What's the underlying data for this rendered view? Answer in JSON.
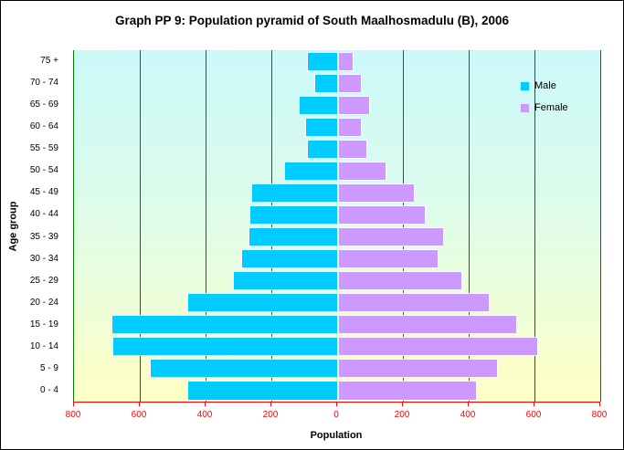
{
  "title": "Graph PP 9: Population pyramid of South Maalhosmadulu (B), 2006",
  "chart_data": {
    "type": "bar",
    "variant": "population-pyramid",
    "title": "Graph PP 9: Population pyramid of South Maalhosmadulu (B), 2006",
    "xlabel": "Population",
    "ylabel": "Age group",
    "categories": [
      "75 +",
      "70 - 74",
      "65 - 69",
      "60 - 64",
      "55 - 59",
      "50 - 54",
      "45 - 49",
      "40 - 44",
      "35 - 39",
      "30 - 34",
      "25 - 29",
      "20 - 24",
      "15 - 19",
      "10 - 14",
      "5 - 9",
      "0 - 4"
    ],
    "series": [
      {
        "name": "Male",
        "side": "left",
        "color": "#00ccff",
        "values": [
          93,
          70,
          116,
          97,
          92,
          160,
          262,
          266,
          270,
          293,
          317,
          455,
          685,
          682,
          570,
          456
        ]
      },
      {
        "name": "Female",
        "side": "right",
        "color": "#cc99ff",
        "values": [
          48,
          73,
          98,
          73,
          89,
          146,
          233,
          267,
          322,
          306,
          377,
          462,
          544,
          607,
          487,
          422
        ]
      }
    ],
    "x_tick_labels": [
      "800",
      "600",
      "400",
      "200",
      "0",
      "200",
      "400",
      "600",
      "800"
    ],
    "x_max_each_side": 800,
    "x_tick_step": 200,
    "grid": "vertical gridlines every 200, dark green",
    "legend_position": "inside top-right",
    "legend_entries": [
      "Male",
      "Female"
    ]
  },
  "colors": {
    "male_bar": "#00ccff",
    "female_bar": "#cc99ff",
    "gridline": "#007c00",
    "axis_line": "#ff0000",
    "tick_label": "#ff0000",
    "plot_bg_top": "#cbf9f9",
    "plot_bg_bottom": "#ffffc4",
    "text": "#000000"
  }
}
